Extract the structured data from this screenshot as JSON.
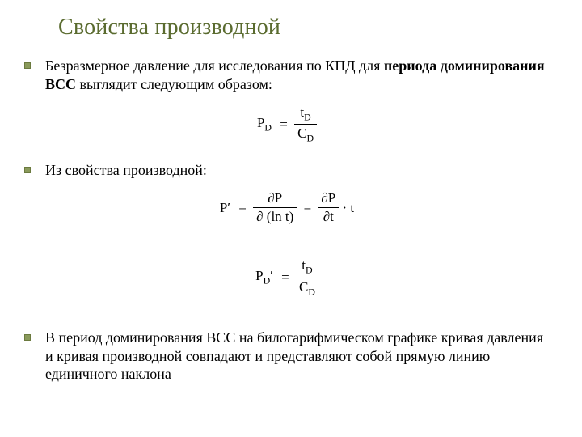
{
  "title": "Свойства производной",
  "title_color": "#5a6b2f",
  "bullet_color": "#8a9a5b",
  "bullet_border": "#6b7a3f",
  "bullets": {
    "b1_part1": "Безразмерное давление для исследования по КПД для ",
    "b1_bold1": "периода доминирования ВСС",
    "b1_part2": " выглядит следующим образом:",
    "b2": "Из свойства производной:",
    "b3": "В период доминирования ВСС на билогарифмическом графике кривая давления и кривая производной совпадают и представляют собой прямую линию единичного наклона"
  },
  "formulas": {
    "f1": {
      "lhs_base": "P",
      "lhs_sub": "D",
      "num_base": "t",
      "num_sub": "D",
      "den_base": "C",
      "den_sub": "D"
    },
    "f2": {
      "lhs": "P′",
      "num1": "∂P",
      "den1_a": "∂ (",
      "den1_b": "ln t",
      "den1_c": ")",
      "num2": "∂P",
      "den2": "∂t",
      "tail": " · t"
    },
    "f3": {
      "lhs_base": "P",
      "lhs_sub": "D",
      "lhs_prime": "′",
      "num_base": "t",
      "num_sub": "D",
      "den_base": "C",
      "den_sub": "D"
    }
  }
}
